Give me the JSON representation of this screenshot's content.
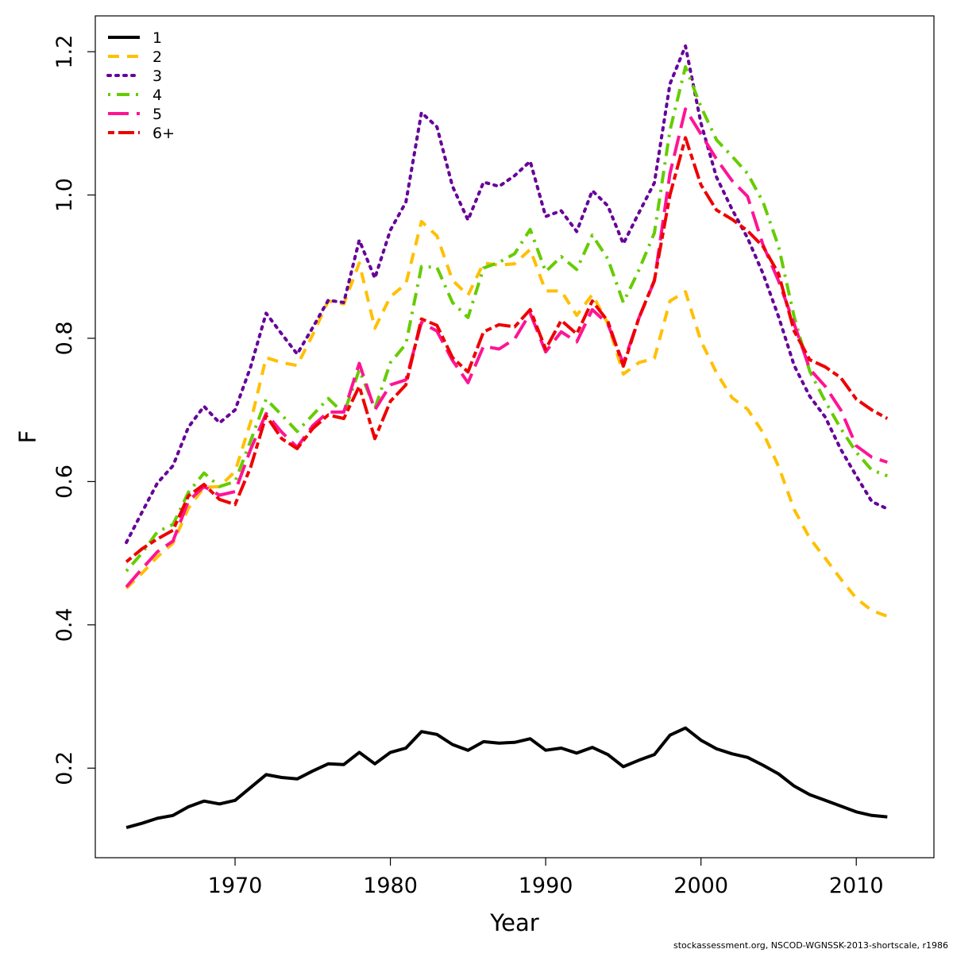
{
  "chart_data": {
    "type": "line",
    "title": "",
    "xlabel": "Year",
    "ylabel": "F",
    "xlim": [
      1961,
      2015
    ],
    "ylim": [
      0.075,
      1.25
    ],
    "x_ticks": [
      1970,
      1980,
      1990,
      2000,
      2010
    ],
    "y_ticks": [
      0.2,
      0.4,
      0.6,
      0.8,
      1.0,
      1.2
    ],
    "x_tick_labels": [
      "1970",
      "1980",
      "1990",
      "2000",
      "2010"
    ],
    "y_tick_labels": [
      "0.2",
      "0.4",
      "0.6",
      "0.8",
      "1.0",
      "1.2"
    ],
    "grid": false,
    "legend_position": "top-left",
    "x": [
      1963,
      1964,
      1965,
      1966,
      1967,
      1968,
      1969,
      1970,
      1971,
      1972,
      1973,
      1974,
      1975,
      1976,
      1977,
      1978,
      1979,
      1980,
      1981,
      1982,
      1983,
      1984,
      1985,
      1986,
      1987,
      1988,
      1989,
      1990,
      1991,
      1992,
      1993,
      1994,
      1995,
      1996,
      1997,
      1998,
      1999,
      2000,
      2001,
      2002,
      2003,
      2004,
      2005,
      2006,
      2007,
      2008,
      2009,
      2010,
      2011,
      2012
    ],
    "series": [
      {
        "name": "1",
        "color": "#000000",
        "dash": "solid",
        "values": [
          0.117,
          0.123,
          0.13,
          0.134,
          0.146,
          0.154,
          0.15,
          0.155,
          0.173,
          0.191,
          0.187,
          0.185,
          0.196,
          0.206,
          0.205,
          0.222,
          0.206,
          0.222,
          0.228,
          0.251,
          0.247,
          0.233,
          0.225,
          0.237,
          0.235,
          0.236,
          0.241,
          0.225,
          0.228,
          0.221,
          0.229,
          0.219,
          0.202,
          0.211,
          0.219,
          0.246,
          0.256,
          0.239,
          0.227,
          0.22,
          0.215,
          0.204,
          0.192,
          0.175,
          0.163,
          0.155,
          0.147,
          0.139,
          0.134,
          0.132
        ]
      },
      {
        "name": "2",
        "color": "#FFC000",
        "dash": "dashed",
        "values": [
          0.451,
          0.472,
          0.495,
          0.514,
          0.563,
          0.592,
          0.593,
          0.614,
          0.683,
          0.773,
          0.766,
          0.762,
          0.805,
          0.852,
          0.848,
          0.905,
          0.814,
          0.858,
          0.876,
          0.963,
          0.943,
          0.881,
          0.86,
          0.905,
          0.902,
          0.904,
          0.924,
          0.866,
          0.866,
          0.832,
          0.861,
          0.821,
          0.75,
          0.766,
          0.772,
          0.852,
          0.865,
          0.796,
          0.752,
          0.717,
          0.701,
          0.668,
          0.621,
          0.561,
          0.521,
          0.493,
          0.464,
          0.437,
          0.42,
          0.412
        ]
      },
      {
        "name": "3",
        "color": "#660099",
        "dash": "dotted",
        "values": [
          0.515,
          0.557,
          0.598,
          0.622,
          0.676,
          0.705,
          0.682,
          0.7,
          0.76,
          0.835,
          0.806,
          0.778,
          0.815,
          0.853,
          0.85,
          0.937,
          0.884,
          0.951,
          0.99,
          1.115,
          1.095,
          1.012,
          0.965,
          1.018,
          1.012,
          1.027,
          1.047,
          0.97,
          0.978,
          0.949,
          1.006,
          0.985,
          0.932,
          0.975,
          1.017,
          1.155,
          1.208,
          1.1,
          1.025,
          0.98,
          0.94,
          0.89,
          0.83,
          0.762,
          0.719,
          0.69,
          0.645,
          0.608,
          0.572,
          0.562
        ]
      },
      {
        "name": "4",
        "color": "#66CC00",
        "dash": "dotdash",
        "values": [
          0.475,
          0.5,
          0.53,
          0.54,
          0.585,
          0.612,
          0.593,
          0.6,
          0.657,
          0.715,
          0.693,
          0.67,
          0.693,
          0.716,
          0.695,
          0.756,
          0.702,
          0.766,
          0.792,
          0.9,
          0.899,
          0.85,
          0.829,
          0.898,
          0.906,
          0.918,
          0.952,
          0.893,
          0.914,
          0.896,
          0.944,
          0.911,
          0.85,
          0.895,
          0.947,
          1.09,
          1.179,
          1.123,
          1.077,
          1.054,
          1.03,
          0.99,
          0.928,
          0.83,
          0.754,
          0.712,
          0.674,
          0.641,
          0.616,
          0.608
        ]
      },
      {
        "name": "5",
        "color": "#FF1493",
        "dash": "longdash",
        "values": [
          0.453,
          0.478,
          0.502,
          0.517,
          0.573,
          0.593,
          0.581,
          0.586,
          0.645,
          0.695,
          0.669,
          0.648,
          0.678,
          0.697,
          0.697,
          0.765,
          0.7,
          0.735,
          0.742,
          0.822,
          0.81,
          0.769,
          0.738,
          0.789,
          0.785,
          0.799,
          0.835,
          0.781,
          0.809,
          0.795,
          0.84,
          0.82,
          0.765,
          0.828,
          0.88,
          1.03,
          1.12,
          1.085,
          1.05,
          1.02,
          0.998,
          0.93,
          0.88,
          0.82,
          0.757,
          0.733,
          0.7,
          0.65,
          0.634,
          0.627
        ]
      },
      {
        "name": "6+",
        "color": "#EE0000",
        "dash": "twodash",
        "values": [
          0.488,
          0.506,
          0.52,
          0.532,
          0.58,
          0.596,
          0.575,
          0.568,
          0.62,
          0.692,
          0.66,
          0.646,
          0.674,
          0.693,
          0.688,
          0.733,
          0.66,
          0.712,
          0.735,
          0.827,
          0.818,
          0.773,
          0.753,
          0.809,
          0.819,
          0.816,
          0.84,
          0.785,
          0.825,
          0.806,
          0.852,
          0.824,
          0.761,
          0.828,
          0.881,
          1.0,
          1.08,
          1.014,
          0.979,
          0.966,
          0.95,
          0.928,
          0.89,
          0.81,
          0.77,
          0.76,
          0.745,
          0.715,
          0.7,
          0.688
        ]
      }
    ]
  },
  "caption": "stockassessment.org, NSCOD-WGNSSK-2013-shortscale, r1986"
}
